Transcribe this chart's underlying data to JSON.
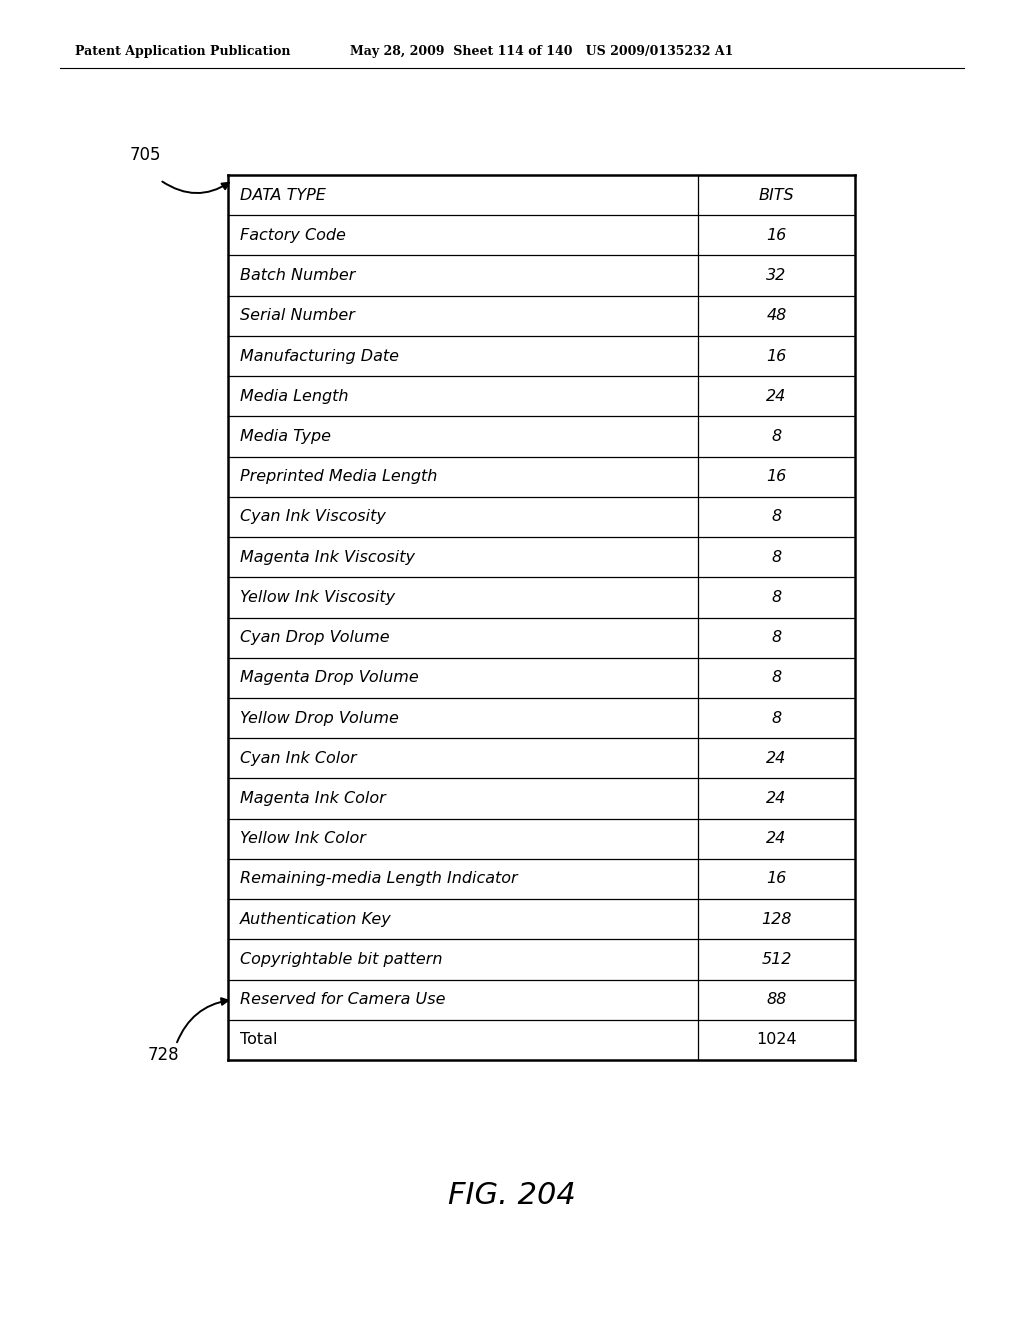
{
  "header_row": [
    "DATA TYPE",
    "BITS"
  ],
  "rows": [
    [
      "Factory Code",
      "16"
    ],
    [
      "Batch Number",
      "32"
    ],
    [
      "Serial Number",
      "48"
    ],
    [
      "Manufacturing Date",
      "16"
    ],
    [
      "Media Length",
      "24"
    ],
    [
      "Media Type",
      "8"
    ],
    [
      "Preprinted Media Length",
      "16"
    ],
    [
      "Cyan Ink Viscosity",
      "8"
    ],
    [
      "Magenta Ink Viscosity",
      "8"
    ],
    [
      "Yellow Ink Viscosity",
      "8"
    ],
    [
      "Cyan Drop Volume",
      "8"
    ],
    [
      "Magenta Drop Volume",
      "8"
    ],
    [
      "Yellow Drop Volume",
      "8"
    ],
    [
      "Cyan Ink Color",
      "24"
    ],
    [
      "Magenta Ink Color",
      "24"
    ],
    [
      "Yellow Ink Color",
      "24"
    ],
    [
      "Remaining-media Length Indicator",
      "16"
    ],
    [
      "Authentication Key",
      "128"
    ],
    [
      "Copyrightable bit pattern",
      "512"
    ],
    [
      "Reserved for Camera Use",
      "88"
    ],
    [
      "Total",
      "1024"
    ]
  ],
  "pub_left": "Patent Application Publication",
  "pub_right": "May 28, 2009  Sheet 114 of 140   US 2009/0135232 A1",
  "label_705": "705",
  "label_728": "728",
  "fig_label": "FIG. 204",
  "bg_color": "#ffffff"
}
